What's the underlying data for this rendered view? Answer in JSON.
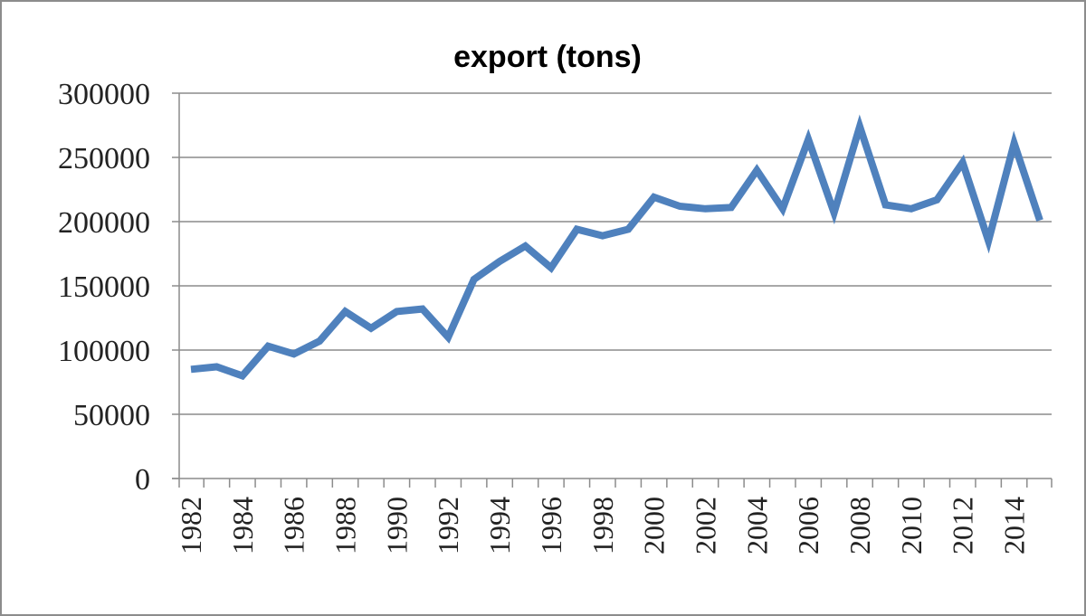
{
  "chart_data": {
    "type": "line",
    "title": "export (tons)",
    "xlabel": "",
    "ylabel": "",
    "ylim": [
      0,
      300000
    ],
    "yticks": [
      "0",
      "50000",
      "100000",
      "150000",
      "200000",
      "250000",
      "300000"
    ],
    "xtick_labels": [
      "1982",
      "1984",
      "1986",
      "1988",
      "1990",
      "1992",
      "1994",
      "1996",
      "1998",
      "2000",
      "2002",
      "2004",
      "2006",
      "2008",
      "2010",
      "2012",
      "2014"
    ],
    "grid": "horizontal",
    "legend": "none",
    "colors": {
      "line": "#4f81bd",
      "grid": "#8c8c8c",
      "axis": "#8c8c8c"
    },
    "x": [
      1982,
      1983,
      1984,
      1985,
      1986,
      1987,
      1988,
      1989,
      1990,
      1991,
      1992,
      1993,
      1994,
      1995,
      1996,
      1997,
      1998,
      1999,
      2000,
      2001,
      2002,
      2003,
      2004,
      2005,
      2006,
      2007,
      2008,
      2009,
      2010,
      2011,
      2012,
      2013,
      2014,
      2015
    ],
    "series": [
      {
        "values": [
          85000,
          87000,
          80000,
          103000,
          97000,
          107000,
          130000,
          117000,
          130000,
          132000,
          110000,
          155000,
          169000,
          181000,
          164000,
          194000,
          189000,
          194000,
          219000,
          212000,
          210000,
          211000,
          240000,
          210000,
          264000,
          207000,
          274000,
          213000,
          210000,
          217000,
          246000,
          185000,
          261000,
          201000
        ]
      }
    ]
  }
}
